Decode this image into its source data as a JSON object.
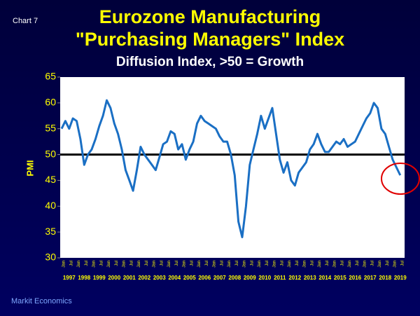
{
  "chart_data": {
    "type": "line",
    "label": "Chart 7",
    "title": [
      "Eurozone Manufacturing",
      "\"Purchasing Managers\" Index"
    ],
    "subtitle": "Diffusion Index, >50 = Growth",
    "y_label": "PMI",
    "source": "Markit Economics",
    "ylim": [
      30,
      65
    ],
    "yticks": [
      30,
      35,
      40,
      45,
      50,
      55,
      60,
      65
    ],
    "reference_line": 50,
    "years": [
      "1997",
      "1998",
      "1999",
      "2000",
      "2001",
      "2002",
      "2003",
      "2004",
      "2005",
      "2006",
      "2007",
      "2008",
      "2009",
      "2010",
      "2011",
      "2012",
      "2013",
      "2014",
      "2015",
      "2016",
      "2017",
      "2018",
      "2019"
    ],
    "half_year_labels": [
      "Jan",
      "Jul"
    ],
    "x": [
      "1997-01",
      "1997-04",
      "1997-07",
      "1997-10",
      "1998-01",
      "1998-04",
      "1998-07",
      "1998-10",
      "1999-01",
      "1999-04",
      "1999-07",
      "1999-10",
      "2000-01",
      "2000-04",
      "2000-07",
      "2000-10",
      "2001-01",
      "2001-04",
      "2001-07",
      "2001-10",
      "2002-01",
      "2002-04",
      "2002-07",
      "2002-10",
      "2003-01",
      "2003-04",
      "2003-07",
      "2003-10",
      "2004-01",
      "2004-04",
      "2004-07",
      "2004-10",
      "2005-01",
      "2005-04",
      "2005-07",
      "2005-10",
      "2006-01",
      "2006-04",
      "2006-07",
      "2006-10",
      "2007-01",
      "2007-04",
      "2007-07",
      "2007-10",
      "2008-01",
      "2008-04",
      "2008-07",
      "2008-10",
      "2009-01",
      "2009-04",
      "2009-07",
      "2009-10",
      "2010-01",
      "2010-04",
      "2010-07",
      "2010-10",
      "2011-01",
      "2011-04",
      "2011-07",
      "2011-10",
      "2012-01",
      "2012-04",
      "2012-07",
      "2012-10",
      "2013-01",
      "2013-04",
      "2013-07",
      "2013-10",
      "2014-01",
      "2014-04",
      "2014-07",
      "2014-10",
      "2015-01",
      "2015-04",
      "2015-07",
      "2015-10",
      "2016-01",
      "2016-04",
      "2016-07",
      "2016-10",
      "2017-01",
      "2017-04",
      "2017-07",
      "2017-10",
      "2018-01",
      "2018-04",
      "2018-07",
      "2018-10",
      "2019-01",
      "2019-04",
      "2019-07"
    ],
    "series": [
      {
        "name": "PMI",
        "color": "#1a6fc4",
        "values": [
          55,
          56.5,
          55,
          57,
          56.5,
          53,
          48,
          50,
          51,
          53,
          55.5,
          57.5,
          60.5,
          59,
          56,
          54,
          51,
          47,
          45,
          43,
          47,
          51.5,
          50,
          49,
          48,
          47,
          49.5,
          52,
          52.5,
          54.5,
          54,
          51,
          52,
          49,
          51,
          52.5,
          56,
          57.5,
          56.5,
          56,
          55.5,
          55,
          53.5,
          52.5,
          52.5,
          50,
          46,
          37,
          34,
          40,
          48,
          51,
          54,
          57.5,
          55,
          57,
          59,
          54,
          49,
          46.5,
          48.5,
          45,
          44,
          46.5,
          47.5,
          48.5,
          51,
          52,
          54,
          52,
          50.5,
          50.5,
          51.5,
          52.5,
          52,
          53,
          51.5,
          52,
          52.5,
          54,
          55.5,
          57,
          58,
          60,
          59,
          55,
          54,
          51.5,
          49,
          47.5,
          46
        ]
      }
    ]
  }
}
